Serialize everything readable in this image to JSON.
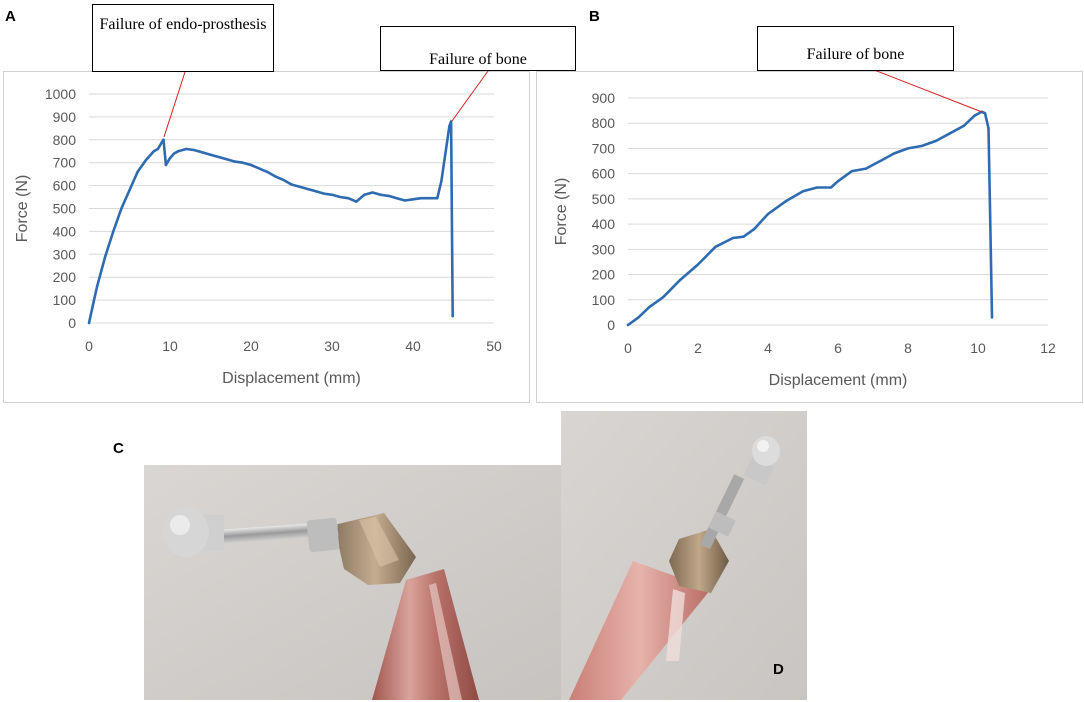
{
  "panels": {
    "a": "A",
    "b": "B",
    "c": "C",
    "d": "D"
  },
  "callouts": {
    "a_endo": "Failure of endo-prosthesis",
    "a_bone": "Failure of bone",
    "b_bone": "Failure of bone"
  },
  "colors": {
    "line": "#2e6bb0",
    "grid": "#d9d9d9",
    "leader": "#d62020",
    "tick_text": "#595959"
  },
  "chart_data": [
    {
      "type": "line",
      "title": "",
      "xlabel": "Displacement (mm)",
      "ylabel": "Force (N)",
      "xlim": [
        0,
        50
      ],
      "ylim": [
        0,
        1000
      ],
      "xticks": [
        0,
        10,
        20,
        30,
        40,
        50
      ],
      "yticks": [
        0,
        100,
        200,
        300,
        400,
        500,
        600,
        700,
        800,
        900,
        1000
      ],
      "grid": "horizontal",
      "x": [
        0,
        0.5,
        1,
        2,
        3,
        4,
        5,
        6,
        7,
        8,
        8.5,
        9,
        9.2,
        9.5,
        10,
        10.5,
        11,
        12,
        13,
        14,
        15,
        16,
        17,
        18,
        19,
        20,
        21,
        22,
        23,
        24,
        25,
        26,
        27,
        28,
        29,
        30,
        31,
        32,
        33,
        34,
        35,
        36,
        37,
        38,
        39,
        40,
        41,
        42,
        43,
        43.5,
        44,
        44.5,
        44.7,
        44.8,
        44.9
      ],
      "y": [
        0,
        80,
        160,
        290,
        400,
        500,
        580,
        660,
        710,
        750,
        760,
        790,
        800,
        690,
        720,
        740,
        750,
        760,
        755,
        745,
        735,
        725,
        715,
        705,
        700,
        690,
        675,
        660,
        640,
        625,
        605,
        595,
        585,
        575,
        565,
        560,
        550,
        545,
        530,
        560,
        570,
        560,
        555,
        545,
        535,
        540,
        545,
        545,
        545,
        620,
        740,
        860,
        880,
        450,
        30
      ]
    },
    {
      "type": "line",
      "title": "",
      "xlabel": "Displacement (mm)",
      "ylabel": "Force (N)",
      "xlim": [
        0,
        12
      ],
      "ylim": [
        0,
        900
      ],
      "xticks": [
        0,
        2,
        4,
        6,
        8,
        10,
        12
      ],
      "yticks": [
        0,
        100,
        200,
        300,
        400,
        500,
        600,
        700,
        800,
        900
      ],
      "grid": "horizontal",
      "x": [
        0,
        0.3,
        0.6,
        1,
        1.5,
        2,
        2.5,
        3,
        3.3,
        3.6,
        4,
        4.5,
        5,
        5.4,
        5.8,
        6,
        6.4,
        6.8,
        7.2,
        7.6,
        8,
        8.4,
        8.8,
        9.2,
        9.6,
        9.9,
        10.1,
        10.2,
        10.3,
        10.35,
        10.4
      ],
      "y": [
        0,
        30,
        70,
        110,
        180,
        240,
        310,
        345,
        350,
        380,
        440,
        490,
        530,
        545,
        545,
        570,
        610,
        620,
        650,
        680,
        700,
        710,
        730,
        760,
        790,
        830,
        845,
        840,
        780,
        400,
        30
      ]
    }
  ]
}
